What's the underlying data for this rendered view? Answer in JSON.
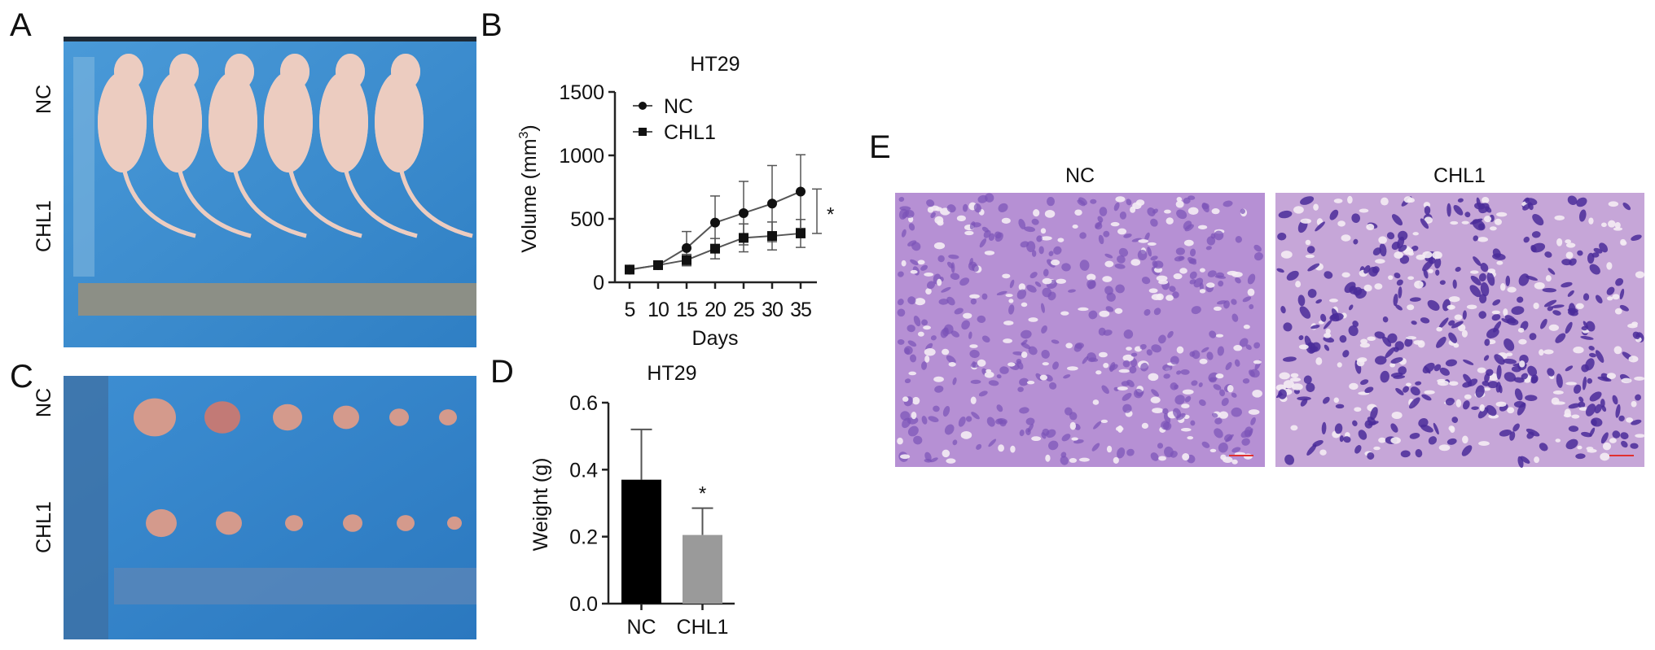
{
  "panels": {
    "A": {
      "letter": "A",
      "row_labels": [
        "NC",
        "CHL1"
      ]
    },
    "B": {
      "letter": "B"
    },
    "C": {
      "letter": "C",
      "row_labels": [
        "NC",
        "CHL1"
      ]
    },
    "D": {
      "letter": "D"
    },
    "E": {
      "letter": "E",
      "image_labels": [
        "NC",
        "CHL1"
      ]
    }
  },
  "colors": {
    "drape_blue": "#3f8fd0",
    "mouse_skin": "#ecccc0",
    "tumor": "#d49a8c",
    "he_purple": "#9b6ec4",
    "nucleus": "#4a2c9a",
    "bar_nc": "#000000",
    "bar_chl1": "#9a9a9a"
  },
  "chart_data": [
    {
      "type": "line",
      "title": "HT29",
      "xlabel": "Days",
      "ylabel": "Volume (mm",
      "ylabel_sup": "3",
      "ylabel_end": ")",
      "x": [
        5,
        10,
        15,
        20,
        25,
        30,
        35
      ],
      "x_ticks": [
        "5",
        "10",
        "15",
        "20",
        "25",
        "30",
        "35"
      ],
      "y_ticks": [
        "0",
        "500",
        "1000",
        "1500"
      ],
      "ylim": [
        0,
        1500
      ],
      "legend_position": "top-left",
      "series": [
        {
          "name": "NC",
          "marker": "circle",
          "values": [
            100,
            135,
            270,
            470,
            545,
            620,
            715
          ],
          "error": [
            10,
            15,
            130,
            210,
            250,
            300,
            290
          ]
        },
        {
          "name": "CHL1",
          "marker": "square",
          "values": [
            100,
            135,
            175,
            265,
            350,
            365,
            385
          ],
          "error": [
            10,
            15,
            45,
            80,
            110,
            110,
            110
          ]
        }
      ],
      "significance": {
        "label": "*",
        "from": 385,
        "to": 735
      }
    },
    {
      "type": "bar",
      "title": "HT29",
      "xlabel": "",
      "ylabel": "Weight (g)",
      "categories": [
        "NC",
        "CHL1"
      ],
      "values": [
        0.37,
        0.205
      ],
      "error": [
        0.15,
        0.08
      ],
      "y_ticks": [
        "0.0",
        "0.2",
        "0.4",
        "0.6"
      ],
      "ylim": [
        0,
        0.6
      ],
      "annotations": [
        {
          "category": "CHL1",
          "label": "*"
        }
      ]
    }
  ]
}
